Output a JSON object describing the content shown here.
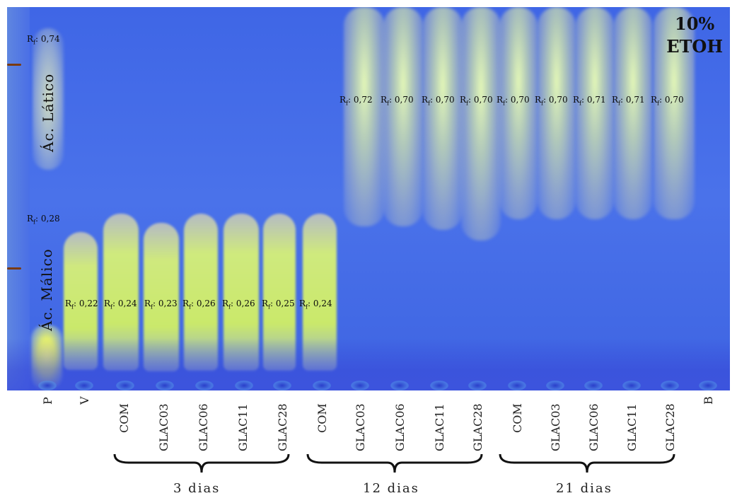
{
  "title": {
    "line1": "10%",
    "line2": "ETOH"
  },
  "standards": {
    "lactic": {
      "label": "Ác. Lático",
      "rf": "0,74"
    },
    "malic": {
      "label": "Ác. Málico",
      "rf": "0,28"
    }
  },
  "rf_prefix": "R",
  "rf_sub": "f",
  "rf_upper": [
    "0,72",
    "0,70",
    "0,70",
    "0,70",
    "0,70",
    "0,70",
    "0,71",
    "0,71",
    "0,70"
  ],
  "rf_lower": [
    "0,22",
    "0,24",
    "0,23",
    "0,26",
    "0,26",
    "0,25",
    "0,24"
  ],
  "lanes": [
    "P",
    "V",
    "COM",
    "GLAC03",
    "GLAC06",
    "GLAC11",
    "GLAC28",
    "COM",
    "GLAC03",
    "GLAC06",
    "GLAC11",
    "GLAC28",
    "COM",
    "GLAC03",
    "GLAC06",
    "GLAC11",
    "GLAC28",
    "B"
  ],
  "groups": [
    "3 dias",
    "12 dias",
    "21 dias"
  ],
  "colors": {
    "plate": "#4a72ea",
    "spot_yellow": "#e6f578",
    "spot_grey": "#c8ccc4"
  }
}
